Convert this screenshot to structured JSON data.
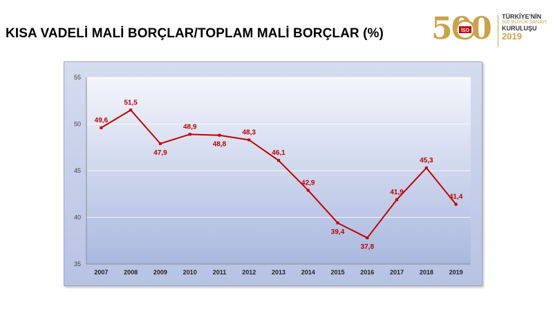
{
  "title": "KISA VADELİ MALİ BORÇLAR/TOPLAM MALİ BORÇLAR (%)",
  "logo": {
    "number": "500",
    "line1": "TÜRKİYE'NİN",
    "line2": "500 BÜYÜK SANAYİ",
    "line3": "KURULUŞU",
    "year": "2019",
    "emblem_text": "İSO"
  },
  "colors": {
    "line": "#c00000",
    "label": "#c00000",
    "axis_text": "#404040",
    "logo_gold": "#c9a24a"
  },
  "chart_data": {
    "type": "line",
    "title": "",
    "xlabel": "",
    "ylabel": "",
    "categories": [
      "2007",
      "2008",
      "2009",
      "2010",
      "2011",
      "2012",
      "2013",
      "2014",
      "2015",
      "2016",
      "2017",
      "2018",
      "2019"
    ],
    "series": [
      {
        "values": [
          49.6,
          51.5,
          47.9,
          48.9,
          48.8,
          48.3,
          46.1,
          42.9,
          39.4,
          37.8,
          41.9,
          45.3,
          41.4
        ],
        "labels": [
          "49,6",
          "51,5",
          "47,9",
          "48,9",
          "48,8",
          "48,3",
          "46,1",
          "42,9",
          "39,4",
          "37,8",
          "41,9",
          "45,3",
          "41,4"
        ],
        "label_position": [
          "above",
          "above",
          "below",
          "above",
          "below",
          "above",
          "above",
          "above",
          "below",
          "below",
          "above",
          "above",
          "above"
        ]
      }
    ],
    "ylim": [
      35,
      55
    ],
    "yticks": [
      35,
      40,
      45,
      50,
      55
    ],
    "grid": true,
    "legend": "none"
  }
}
